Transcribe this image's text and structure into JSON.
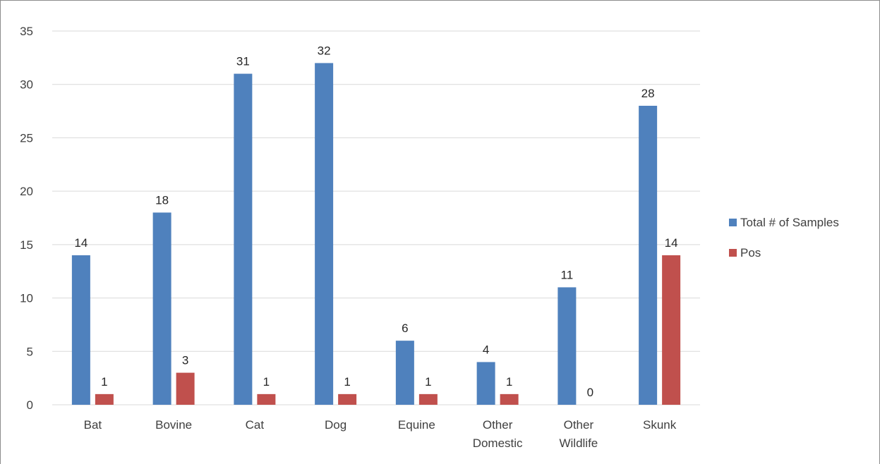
{
  "chart_data": {
    "type": "bar",
    "title": "",
    "xlabel": "",
    "ylabel": "",
    "ylim": [
      0,
      35
    ],
    "yticks": [
      0,
      5,
      10,
      15,
      20,
      25,
      30,
      35
    ],
    "grid": true,
    "legend": "right",
    "categories": [
      [
        "Bat"
      ],
      [
        "Bovine"
      ],
      [
        "Cat"
      ],
      [
        "Dog"
      ],
      [
        "Equine"
      ],
      [
        "Other",
        "Domestic"
      ],
      [
        "Other",
        "Wildlife"
      ],
      [
        "Skunk"
      ]
    ],
    "series": [
      {
        "name": "Total # of Samples",
        "color": "#4F81BD",
        "values": [
          14,
          18,
          31,
          32,
          6,
          4,
          11,
          28
        ]
      },
      {
        "name": "Pos",
        "color": "#C0504D",
        "values": [
          1,
          3,
          1,
          1,
          1,
          1,
          0,
          14
        ]
      }
    ]
  }
}
